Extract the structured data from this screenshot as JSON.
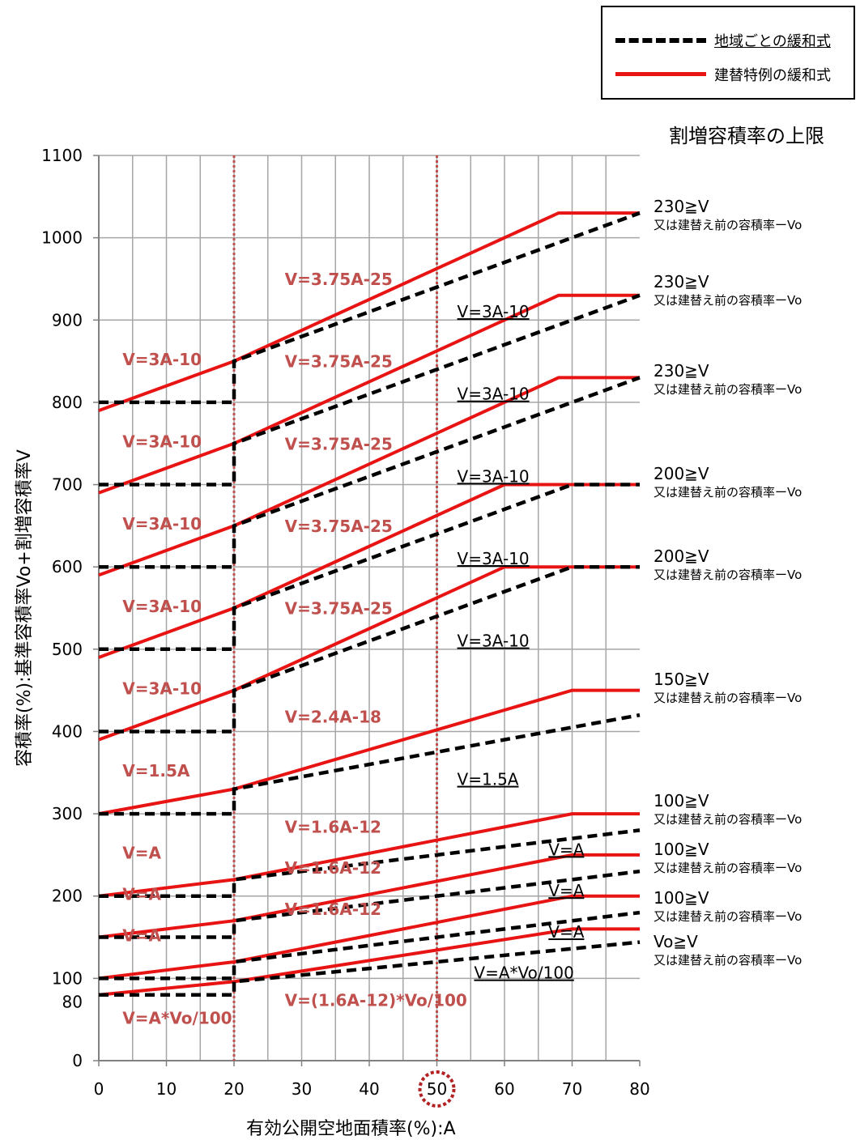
{
  "legend": {
    "regional": "地域ごとの緩和式",
    "rebuild": "建替特例の緩和式"
  },
  "limits_heading": "割増容積率の上限",
  "chart_data": {
    "type": "line",
    "xlabel": "有効公開空地面積率(%):A",
    "ylabel": "容積率(%):基準容積率Vo+割増容積率V",
    "xlim": [
      0,
      80
    ],
    "ylim": [
      0,
      1100
    ],
    "x_ticks": [
      "0",
      "10",
      "20",
      "30",
      "40",
      "50",
      "60",
      "70",
      "80"
    ],
    "y_ticks": [
      "0",
      "80",
      "100",
      "200",
      "300",
      "400",
      "500",
      "600",
      "700",
      "800",
      "900",
      "1000",
      "1100"
    ],
    "grid": true,
    "reference_lines_x": [
      20,
      50
    ],
    "highlighted_x_tick": "50",
    "colors": {
      "regional": "#000000",
      "rebuild": "#e81313",
      "grid": "#a6a6a6",
      "ref": "#c0504d",
      "formula": "#c0504d"
    },
    "groups": [
      {
        "vo": 800,
        "regional": [
          [
            0,
            800
          ],
          [
            20,
            800
          ],
          [
            20,
            850
          ],
          [
            80,
            1030
          ]
        ],
        "rebuild": [
          [
            0,
            790
          ],
          [
            20,
            850
          ],
          [
            68,
            1030
          ],
          [
            80,
            1030
          ]
        ],
        "labels": {
          "left": "V=3A-10",
          "mid": "V=3.75A-25",
          "right": "V=3A-10"
        },
        "cap": {
          "line1": "230≧V",
          "line2": "又は建替え前の容積率ーVo"
        }
      },
      {
        "vo": 700,
        "regional": [
          [
            0,
            700
          ],
          [
            20,
            700
          ],
          [
            20,
            750
          ],
          [
            80,
            930
          ]
        ],
        "rebuild": [
          [
            0,
            690
          ],
          [
            20,
            750
          ],
          [
            68,
            930
          ],
          [
            80,
            930
          ]
        ],
        "labels": {
          "left": "V=3A-10",
          "mid": "V=3.75A-25",
          "right": "V=3A-10"
        },
        "cap": {
          "line1": "230≧V",
          "line2": "又は建替え前の容積率ーVo"
        }
      },
      {
        "vo": 600,
        "regional": [
          [
            0,
            600
          ],
          [
            20,
            600
          ],
          [
            20,
            650
          ],
          [
            80,
            830
          ]
        ],
        "rebuild": [
          [
            0,
            590
          ],
          [
            20,
            650
          ],
          [
            68,
            830
          ],
          [
            80,
            830
          ]
        ],
        "labels": {
          "left": "V=3A-10",
          "mid": "V=3.75A-25",
          "right": "V=3A-10"
        },
        "cap": {
          "line1": "230≧V",
          "line2": "又は建替え前の容積率ーVo"
        }
      },
      {
        "vo": 500,
        "regional": [
          [
            0,
            500
          ],
          [
            20,
            500
          ],
          [
            20,
            550
          ],
          [
            70,
            700
          ],
          [
            80,
            700
          ]
        ],
        "rebuild": [
          [
            0,
            490
          ],
          [
            20,
            550
          ],
          [
            60,
            700
          ],
          [
            80,
            700
          ]
        ],
        "labels": {
          "left": "V=3A-10",
          "mid": "V=3.75A-25",
          "right": "V=3A-10"
        },
        "cap": {
          "line1": "200≧V",
          "line2": "又は建替え前の容積率ーVo"
        }
      },
      {
        "vo": 400,
        "regional": [
          [
            0,
            400
          ],
          [
            20,
            400
          ],
          [
            20,
            450
          ],
          [
            70,
            600
          ],
          [
            80,
            600
          ]
        ],
        "rebuild": [
          [
            0,
            390
          ],
          [
            20,
            450
          ],
          [
            60,
            600
          ],
          [
            80,
            600
          ]
        ],
        "labels": {
          "left": "V=3A-10",
          "mid": "V=3.75A-25",
          "right": "V=3A-10"
        },
        "cap": {
          "line1": "200≧V",
          "line2": "又は建替え前の容積率ーVo"
        }
      },
      {
        "vo": 300,
        "regional": [
          [
            0,
            300
          ],
          [
            20,
            300
          ],
          [
            20,
            330
          ],
          [
            80,
            420
          ]
        ],
        "rebuild": [
          [
            0,
            300
          ],
          [
            20,
            330
          ],
          [
            70,
            450
          ],
          [
            80,
            450
          ]
        ],
        "labels": {
          "left": "V=1.5A",
          "mid": "V=2.4A-18",
          "right": "V=1.5A"
        },
        "cap": {
          "line1": "150≧V",
          "line2": "又は建替え前の容積率ーVo"
        }
      },
      {
        "vo": 200,
        "regional": [
          [
            0,
            200
          ],
          [
            20,
            200
          ],
          [
            20,
            220
          ],
          [
            80,
            280
          ]
        ],
        "rebuild": [
          [
            0,
            200
          ],
          [
            20,
            220
          ],
          [
            70,
            300
          ],
          [
            80,
            300
          ]
        ],
        "labels": {
          "left": "V=A",
          "mid": "V=1.6A-12",
          "right": "V=A"
        },
        "cap": {
          "line1": "100≧V",
          "line2": "又は建替え前の容積率ーVo"
        }
      },
      {
        "vo": 150,
        "regional": [
          [
            0,
            150
          ],
          [
            20,
            150
          ],
          [
            20,
            170
          ],
          [
            80,
            230
          ]
        ],
        "rebuild": [
          [
            0,
            150
          ],
          [
            20,
            170
          ],
          [
            70,
            250
          ],
          [
            80,
            250
          ]
        ],
        "labels": {
          "left": "V=A",
          "mid": "V=1.6A-12",
          "right": "V=A"
        },
        "cap": {
          "line1": "100≧V",
          "line2": "又は建替え前の容積率ーVo"
        }
      },
      {
        "vo": 100,
        "regional": [
          [
            0,
            100
          ],
          [
            20,
            100
          ],
          [
            20,
            120
          ],
          [
            80,
            180
          ]
        ],
        "rebuild": [
          [
            0,
            100
          ],
          [
            20,
            120
          ],
          [
            70,
            200
          ],
          [
            80,
            200
          ]
        ],
        "labels": {
          "left": "V=A",
          "mid": "V=1.6A-12",
          "right": "V=A"
        },
        "cap": {
          "line1": "100≧V",
          "line2": "又は建替え前の容積率ーVo"
        }
      },
      {
        "vo": 80,
        "regional": [
          [
            0,
            80
          ],
          [
            20,
            80
          ],
          [
            20,
            96
          ],
          [
            80,
            144
          ]
        ],
        "rebuild": [
          [
            0,
            80
          ],
          [
            20,
            96
          ],
          [
            70,
            160
          ],
          [
            80,
            160
          ]
        ],
        "labels": {
          "left": "V=A*Vo/100",
          "mid": "V=(1.6A-12)*Vo/100",
          "right": "V=A*Vo/100"
        },
        "cap": {
          "line1": "Vo≧V",
          "line2": "又は建替え前の容積率ーVo"
        }
      }
    ]
  }
}
